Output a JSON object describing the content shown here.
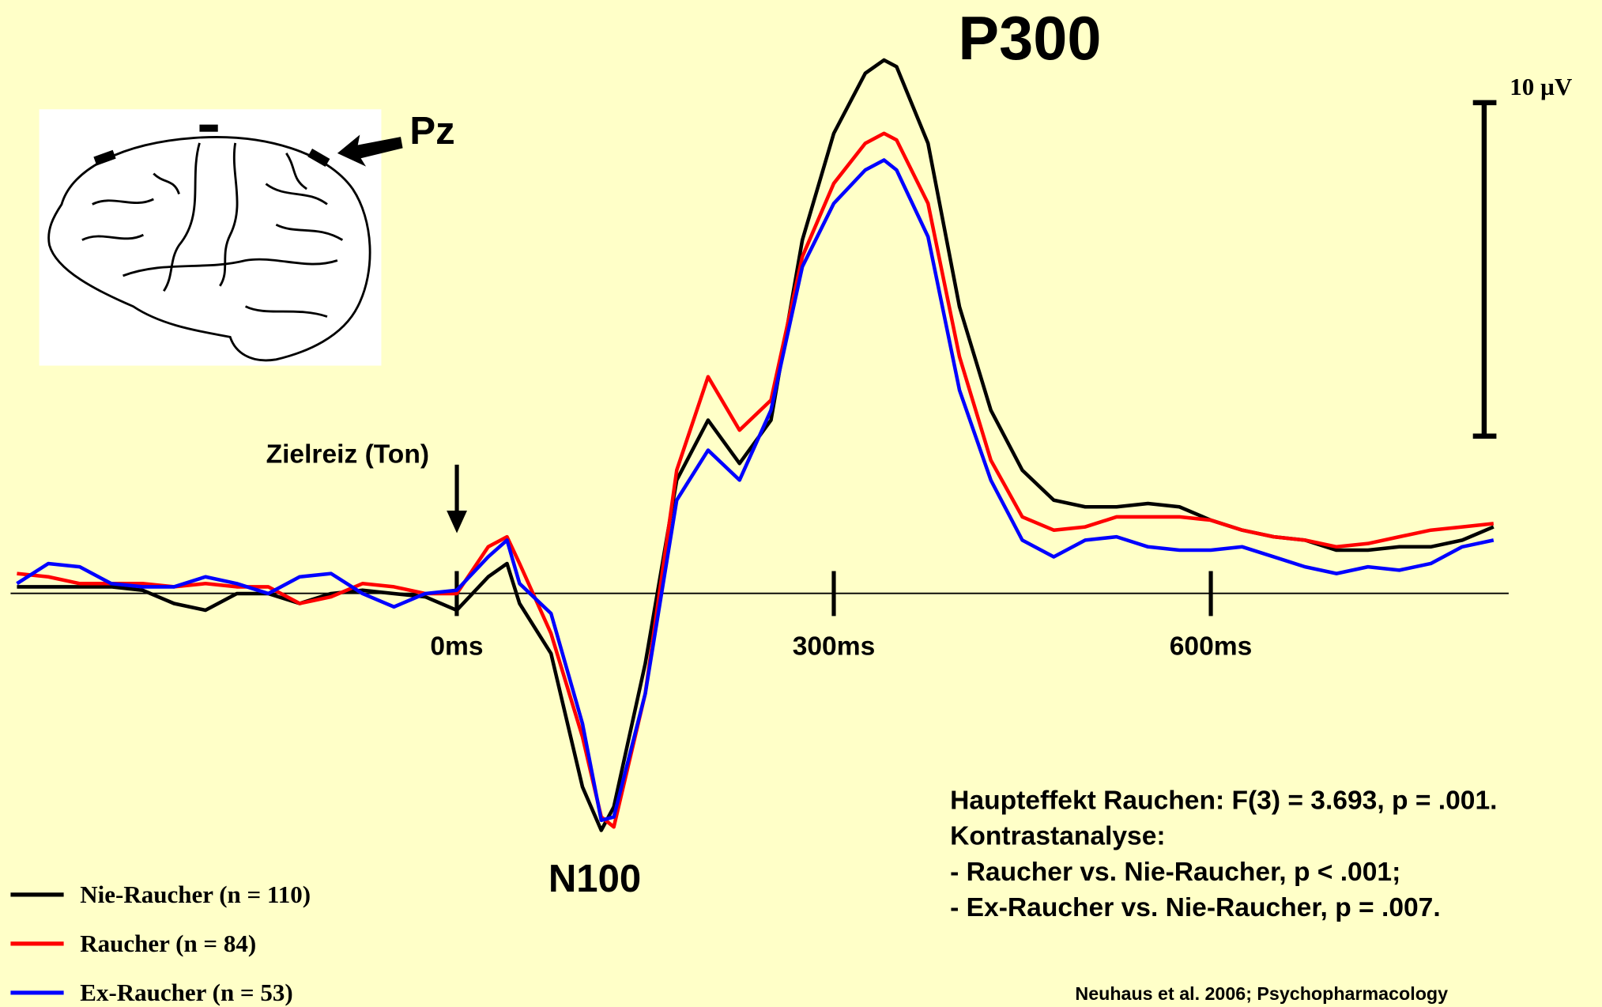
{
  "chart_data": {
    "type": "line",
    "title": "P300",
    "annotations": {
      "n100": "N100",
      "stimulus": "Zielreiz (Ton)",
      "electrode": "Pz"
    },
    "x": [
      -350,
      -325,
      -300,
      -275,
      -250,
      -225,
      -200,
      -175,
      -150,
      -125,
      -100,
      -75,
      -50,
      -25,
      0,
      25,
      40,
      50,
      75,
      100,
      115,
      125,
      150,
      175,
      200,
      225,
      250,
      275,
      300,
      325,
      340,
      350,
      375,
      400,
      425,
      450,
      475,
      500,
      525,
      550,
      575,
      600,
      625,
      650,
      675,
      700,
      725,
      750,
      775,
      800,
      825
    ],
    "series": [
      {
        "name": "Nie-Raucher (n = 110)",
        "color": "#000000",
        "values": [
          0.2,
          0.2,
          0.2,
          0.2,
          0.1,
          -0.3,
          -0.5,
          0.0,
          0.0,
          -0.3,
          0.0,
          0.1,
          0.0,
          -0.1,
          -0.5,
          0.5,
          0.9,
          -0.3,
          -1.8,
          -5.8,
          -7.1,
          -6.4,
          -2.1,
          3.4,
          5.2,
          3.9,
          5.2,
          10.6,
          13.8,
          15.6,
          16.0,
          15.8,
          13.5,
          8.6,
          5.5,
          3.7,
          2.8,
          2.6,
          2.6,
          2.7,
          2.6,
          2.2,
          1.9,
          1.7,
          1.6,
          1.3,
          1.3,
          1.4,
          1.4,
          1.6,
          2.0
        ]
      },
      {
        "name": "Raucher (n = 84)",
        "color": "#ff0000",
        "values": [
          0.6,
          0.5,
          0.3,
          0.3,
          0.3,
          0.2,
          0.3,
          0.2,
          0.2,
          -0.3,
          -0.1,
          0.3,
          0.2,
          0.0,
          0.0,
          1.4,
          1.7,
          0.9,
          -1.2,
          -4.3,
          -6.7,
          -7.0,
          -3.0,
          3.7,
          6.5,
          4.9,
          5.8,
          10.1,
          12.3,
          13.5,
          13.8,
          13.6,
          11.7,
          7.1,
          4.0,
          2.3,
          1.9,
          2.0,
          2.3,
          2.3,
          2.3,
          2.2,
          1.9,
          1.7,
          1.6,
          1.4,
          1.5,
          1.7,
          1.9,
          2.0,
          2.1
        ]
      },
      {
        "name": "Ex-Raucher (n = 53)",
        "color": "#0000ff",
        "values": [
          0.3,
          0.9,
          0.8,
          0.3,
          0.2,
          0.2,
          0.5,
          0.3,
          0.0,
          0.5,
          0.6,
          0.0,
          -0.4,
          0.0,
          0.1,
          1.1,
          1.6,
          0.3,
          -0.6,
          -3.9,
          -6.8,
          -6.7,
          -3.0,
          2.8,
          4.3,
          3.4,
          5.5,
          9.8,
          11.7,
          12.7,
          13.0,
          12.7,
          10.7,
          6.1,
          3.4,
          1.6,
          1.1,
          1.6,
          1.7,
          1.4,
          1.3,
          1.3,
          1.4,
          1.1,
          0.8,
          0.6,
          0.8,
          0.7,
          0.9,
          1.4,
          1.6
        ]
      }
    ],
    "xlim": [
      -355,
      837
    ],
    "ylim": [
      -12.4,
      17.8
    ],
    "xticks": [
      {
        "value": 0,
        "label": "0ms"
      },
      {
        "value": 300,
        "label": "300ms"
      },
      {
        "value": 600,
        "label": "600ms"
      }
    ],
    "scale_bar": {
      "value": 10,
      "label": "10 µV"
    },
    "statistics": [
      "Haupteffekt Rauchen: F(3) = 3.693, p = .001.",
      "Kontrastanalyse:",
      "- Raucher vs. Nie-Raucher, p < .001;",
      "- Ex-Raucher vs. Nie-Raucher, p = .007."
    ],
    "source": "Neuhaus et al. 2006; Psychopharmacology"
  }
}
